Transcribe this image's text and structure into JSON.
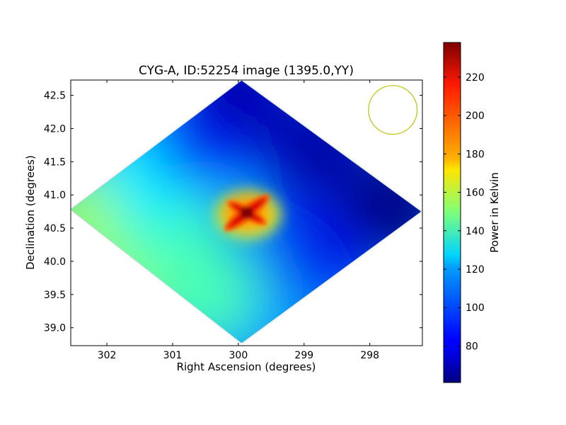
{
  "chart_data": {
    "type": "heatmap",
    "title": "CYG-A, ID:52254 image (1395.0,YY)",
    "xlabel": "Right Ascension (degrees)",
    "ylabel": "Declination (degrees)",
    "xlim": [
      302.55,
      297.2
    ],
    "ylim": [
      38.73,
      42.73
    ],
    "x_inverted": true,
    "xticks": [
      {
        "value": 302,
        "label": "302"
      },
      {
        "value": 301,
        "label": "301"
      },
      {
        "value": 300,
        "label": "300"
      },
      {
        "value": 299,
        "label": "299"
      },
      {
        "value": 298,
        "label": "298"
      }
    ],
    "yticks": [
      {
        "value": 39.0,
        "label": "39.0"
      },
      {
        "value": 39.5,
        "label": "39.5"
      },
      {
        "value": 40.0,
        "label": "40.0"
      },
      {
        "value": 40.5,
        "label": "40.5"
      },
      {
        "value": 41.0,
        "label": "41.0"
      },
      {
        "value": 41.5,
        "label": "41.5"
      },
      {
        "value": 42.0,
        "label": "42.0"
      },
      {
        "value": 42.5,
        "label": "42.5"
      }
    ],
    "colorbar": {
      "label": "Power in Kelvin",
      "colormap": "jet",
      "range": [
        61,
        238
      ],
      "ticks": [
        {
          "value": 80,
          "label": "80"
        },
        {
          "value": 100,
          "label": "100"
        },
        {
          "value": 120,
          "label": "120"
        },
        {
          "value": 140,
          "label": "140"
        },
        {
          "value": 160,
          "label": "160"
        },
        {
          "value": 180,
          "label": "180"
        },
        {
          "value": 200,
          "label": "200"
        },
        {
          "value": 220,
          "label": "220"
        }
      ]
    },
    "footprint": {
      "shape": "diamond",
      "corners": [
        {
          "ra": 302.55,
          "dec": 40.78
        },
        {
          "ra": 299.95,
          "dec": 42.72
        },
        {
          "ra": 297.22,
          "dec": 40.75
        },
        {
          "ra": 299.95,
          "dec": 38.77
        }
      ]
    },
    "source": {
      "name": "CYG-A",
      "ra": 299.87,
      "dec": 40.73,
      "peak_kelvin": 238
    },
    "field_values": [
      {
        "ra": 302.3,
        "dec": 40.7,
        "kelvin": 155
      },
      {
        "ra": 301.5,
        "dec": 39.9,
        "kelvin": 155
      },
      {
        "ra": 301.0,
        "dec": 40.4,
        "kelvin": 140
      },
      {
        "ra": 301.3,
        "dec": 41.3,
        "kelvin": 125
      },
      {
        "ra": 300.5,
        "dec": 41.9,
        "kelvin": 90
      },
      {
        "ra": 300.0,
        "dec": 42.6,
        "kelvin": 70
      },
      {
        "ra": 298.8,
        "dec": 41.7,
        "kelvin": 68
      },
      {
        "ra": 297.6,
        "dec": 40.8,
        "kelvin": 62
      },
      {
        "ra": 299.0,
        "dec": 40.0,
        "kelvin": 80
      },
      {
        "ra": 299.8,
        "dec": 39.3,
        "kelvin": 110
      },
      {
        "ra": 300.5,
        "dec": 39.5,
        "kelvin": 140
      }
    ],
    "beam_circle": {
      "ra": 297.65,
      "dec": 42.28,
      "radius_deg": 0.37,
      "color": "#bfbf00"
    }
  }
}
